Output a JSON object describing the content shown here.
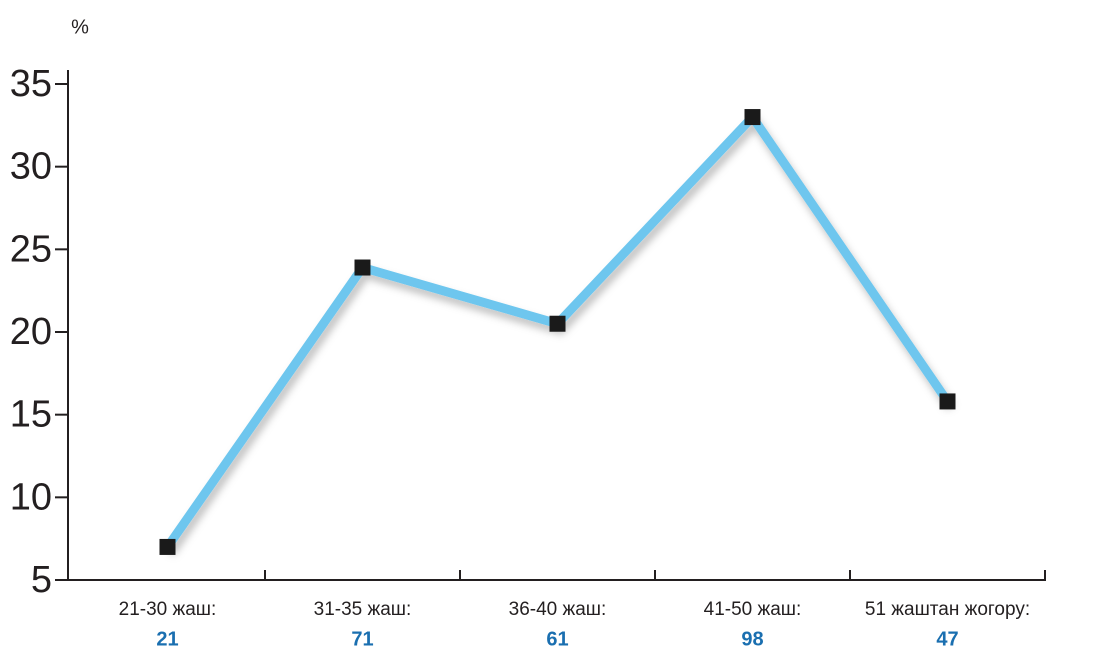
{
  "chart_data": {
    "type": "line",
    "y_axis_label": "%",
    "categories": [
      "21-30 жаш:",
      "31-35 жаш:",
      "36-40 жаш:",
      "41-50 жаш:",
      "51 жаштан жогору:"
    ],
    "category_counts": [
      21,
      71,
      61,
      98,
      47
    ],
    "values": [
      7.0,
      23.9,
      20.5,
      33.0,
      15.8
    ],
    "color": "#6ec6ee",
    "marker_color": "#1a1a1a",
    "count_color": "#1a6fb0",
    "ylim": [
      5,
      35
    ],
    "yticks": [
      5,
      10,
      15,
      20,
      25,
      30,
      35
    ],
    "grid": false
  }
}
